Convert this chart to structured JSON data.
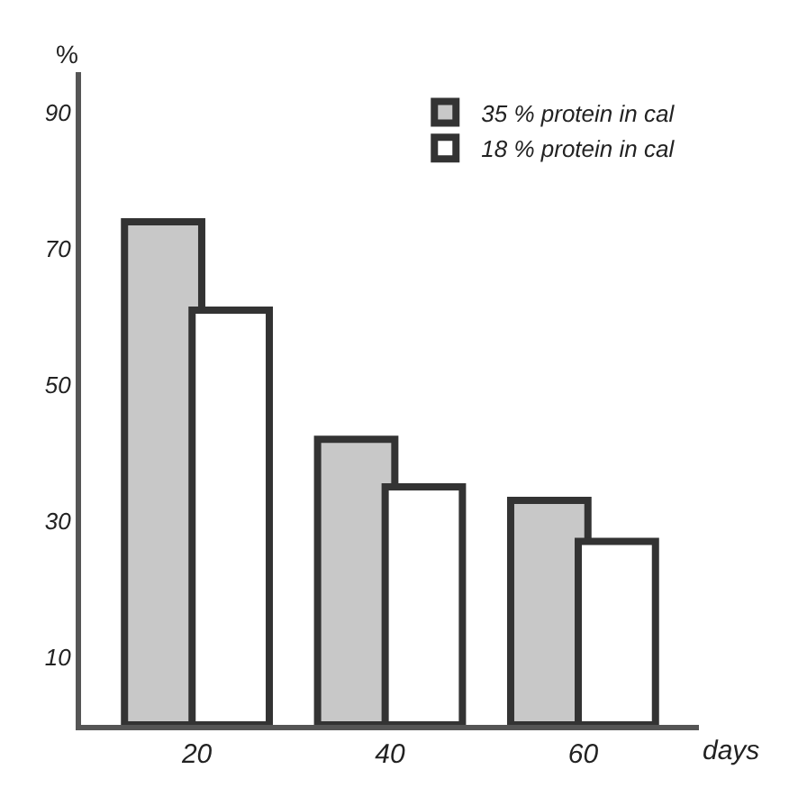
{
  "chart_data": {
    "type": "bar",
    "ylabel": "%",
    "xlabel": "days",
    "categories": [
      "20",
      "40",
      "60"
    ],
    "series": [
      {
        "name": "35 % protein in cal",
        "color": "#c8c8c8",
        "values": [
          74,
          42,
          33
        ]
      },
      {
        "name": "18 % protein in cal",
        "color": "#ffffff",
        "values": [
          61,
          35,
          27
        ]
      }
    ],
    "ylim": [
      0,
      96
    ],
    "yticks": [
      10,
      30,
      50,
      70,
      90
    ],
    "legend": "top right"
  }
}
